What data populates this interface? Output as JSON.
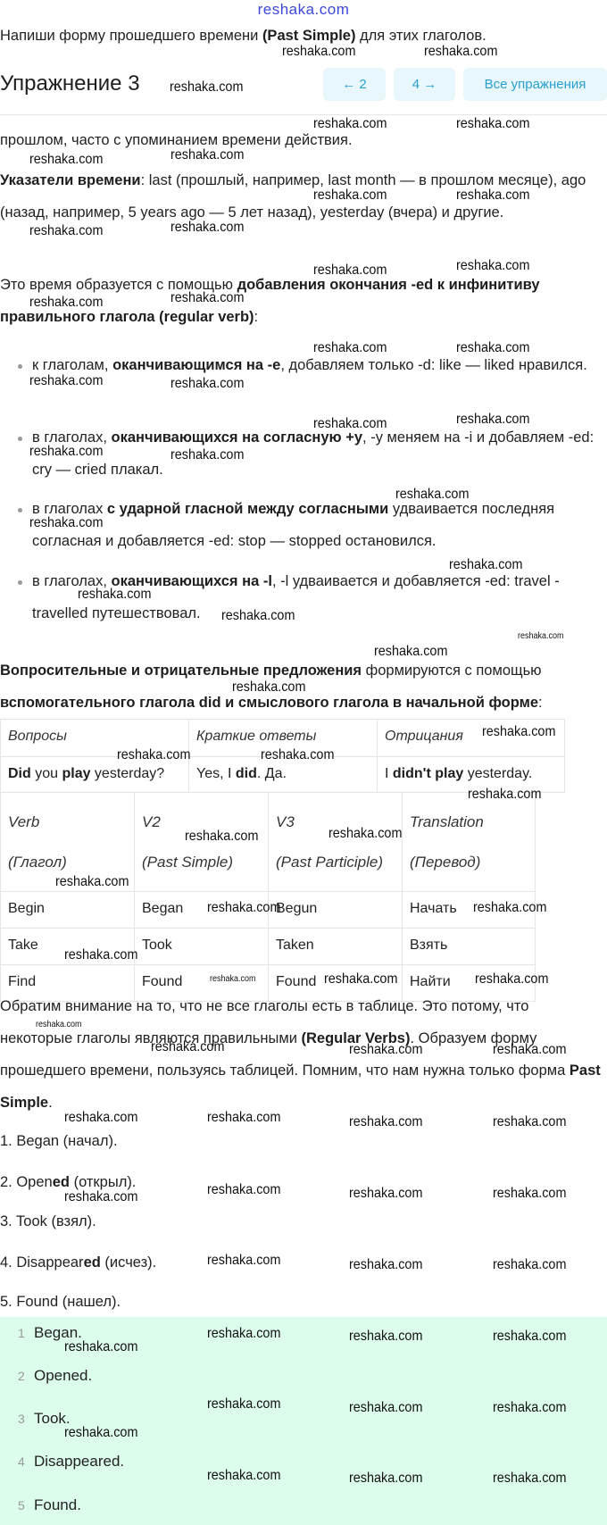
{
  "site": "reshaka.com",
  "watermark": "reshaka.com",
  "instruction": [
    {
      "t": "Напиши форму прошедшего времени "
    },
    {
      "t": "(Past Simple)",
      "b": 1
    },
    {
      "t": " для этих глаголов."
    }
  ],
  "header": {
    "title": "Упражнение 3",
    "prev": "← 2",
    "next": "4 →",
    "all": "Все упражнения"
  },
  "theory": {
    "p1": [
      {
        "t": "прошлом, часто с упоминанием времени действия."
      }
    ],
    "p2": [
      {
        "t": "Указатели времени",
        "b": 1
      },
      {
        "t": ": last (прошлый, например, last month — в прошлом месяце), ago (назад, например, 5 years ago — 5 лет назад), yesterday (вчера) и другие."
      }
    ],
    "p3": [
      {
        "t": "Это время образуется с помощью "
      },
      {
        "t": "добавления окончания -ed к инфинитиву правильного глагола (regular verb)",
        "b": 1
      },
      {
        "t": ":"
      }
    ],
    "bullets": [
      [
        {
          "t": "к глаголам, "
        },
        {
          "t": "оканчивающимся на -e",
          "b": 1
        },
        {
          "t": ", добавляем только -d: like — liked нравился."
        }
      ],
      [
        {
          "t": "в глаголах, "
        },
        {
          "t": "оканчивающихся на согласную +y",
          "b": 1
        },
        {
          "t": ", -y меняем на -i и добавляем -ed: cry — cried плакал."
        }
      ],
      [
        {
          "t": "в глаголах "
        },
        {
          "t": "с ударной гласной между согласными",
          "b": 1
        },
        {
          "t": " удваивается последняя согласная и добавляется -ed: stop — stopped остановился."
        }
      ],
      [
        {
          "t": "в глаголах, "
        },
        {
          "t": "оканчивающихся на -l",
          "b": 1
        },
        {
          "t": ", -l удваивается и добавляется -ed: travel - travelled путешествовал."
        }
      ]
    ],
    "p4": [
      {
        "t": "Вопросительные и отрицательные предложения",
        "b": 1
      },
      {
        "t": " формируются с помощью "
      },
      {
        "t": "вспомогательного глагола did и смыслового глагола в начальной форме",
        "b": 1
      },
      {
        "t": ":"
      }
    ]
  },
  "table1": {
    "headers": [
      "Вопросы",
      "Краткие ответы",
      "Отрицания"
    ],
    "row": [
      [
        {
          "t": "Did",
          "b": 1
        },
        {
          "t": " you "
        },
        {
          "t": "play",
          "b": 1
        },
        {
          "t": " yesterday?"
        }
      ],
      [
        {
          "t": "Yes, I "
        },
        {
          "t": "did",
          "b": 1
        },
        {
          "t": ". Да."
        }
      ],
      [
        {
          "t": "I "
        },
        {
          "t": "didn't play",
          "b": 1
        },
        {
          "t": " yesterday."
        }
      ]
    ]
  },
  "table2": {
    "headers": [
      [
        "Verb",
        "(Глагол)"
      ],
      [
        "V2",
        "(Past Simple)"
      ],
      [
        "V3",
        "(Past Participle)"
      ],
      [
        "Translation",
        "(Перевод)"
      ]
    ],
    "rows": [
      [
        "Begin",
        "Began",
        "Begun",
        "Начать"
      ],
      [
        "Take",
        "Took",
        "Taken",
        "Взять"
      ],
      [
        "Find",
        "Found",
        "Found",
        "Найти"
      ]
    ]
  },
  "p5": [
    {
      "t": "Обратим внимание на то, что не все глаголы есть в таблице. Это потому, что некоторые глаголы являются правильными "
    },
    {
      "t": "(Regular Verbs)",
      "b": 1
    },
    {
      "t": ". Образуем форму прошедшего времени, пользуясь таблицей. Помним, что нам нужна только форма "
    },
    {
      "t": "Past Simple",
      "b": 1
    },
    {
      "t": "."
    }
  ],
  "solution": [
    [
      {
        "t": "1. Began (начал)."
      }
    ],
    [
      {
        "t": "2. Open"
      },
      {
        "t": "ed",
        "b": 1
      },
      {
        "t": " (открыл)."
      }
    ],
    [
      {
        "t": "3. Took (взял)."
      }
    ],
    [
      {
        "t": "4. Disappear"
      },
      {
        "t": "ed",
        "b": 1
      },
      {
        "t": " (исчез)."
      }
    ],
    [
      {
        "t": "5. Found (нашел)."
      }
    ]
  ],
  "answers": [
    {
      "n": "1",
      "t": "Began."
    },
    {
      "n": "2",
      "t": "Opened."
    },
    {
      "n": "3",
      "t": "Took."
    },
    {
      "n": "4",
      "t": "Disappeared."
    },
    {
      "n": "5",
      "t": "Found."
    }
  ],
  "colors": {
    "accent": "#2a9fd0",
    "button_bg": "#e8f7fb",
    "answer_bg": "#dcfcec",
    "site": "#3b48d8"
  }
}
